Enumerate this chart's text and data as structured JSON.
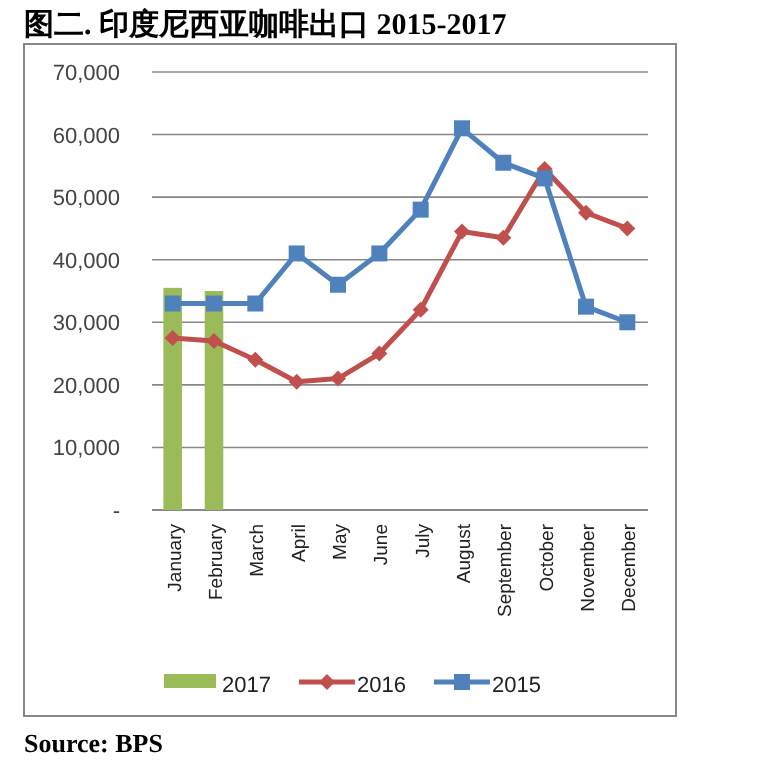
{
  "chart_data": {
    "type": "line",
    "title": "图二. 印度尼西亚咖啡出口 2015-2017",
    "annotations": [
      "Source: BPS"
    ],
    "categories": [
      "January",
      "February",
      "March",
      "April",
      "May",
      "June",
      "July",
      "August",
      "September",
      "October",
      "November",
      "December"
    ],
    "series": [
      {
        "name": "2017",
        "type": "bar",
        "color": "#9bbb59",
        "values": [
          35500,
          35000,
          null,
          null,
          null,
          null,
          null,
          null,
          null,
          null,
          null,
          null
        ]
      },
      {
        "name": "2016",
        "color": "#c0504d",
        "marker": "diamond",
        "values": [
          27500,
          27000,
          24000,
          20500,
          21000,
          25000,
          32000,
          44500,
          43500,
          54500,
          47500,
          45000
        ]
      },
      {
        "name": "2015",
        "color": "#4f81bd",
        "marker": "square",
        "values": [
          33000,
          33000,
          33000,
          41000,
          36000,
          41000,
          48000,
          61000,
          55500,
          53000,
          32500,
          30000
        ]
      }
    ],
    "ylim": [
      0,
      70000
    ],
    "yticks": [
      {
        "value": 0,
        "label": "-"
      },
      {
        "value": 10000,
        "label": "10,000"
      },
      {
        "value": 20000,
        "label": "20,000"
      },
      {
        "value": 30000,
        "label": "30,000"
      },
      {
        "value": 40000,
        "label": "40,000"
      },
      {
        "value": 50000,
        "label": "50,000"
      },
      {
        "value": 60000,
        "label": "60,000"
      },
      {
        "value": 70000,
        "label": "70,000"
      }
    ],
    "grid": "y",
    "legend": "bottom"
  }
}
